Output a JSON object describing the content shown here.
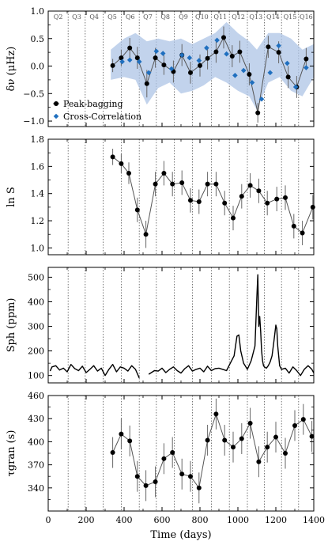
{
  "chart_data": [
    {
      "type": "scatter",
      "ylabel": "δν (μHz)",
      "xlim": [
        0,
        1400
      ],
      "ylim": [
        -1.1,
        1.0
      ],
      "yticks": [
        -1.0,
        -0.5,
        0.0,
        0.5,
        1.0
      ],
      "ytick_labels": [
        "−1.0",
        "−0.5",
        "0.0",
        "0.5",
        "1.0"
      ],
      "quarters": {
        "labels": [
          "Q2",
          "Q3",
          "Q4",
          "Q5",
          "Q6",
          "Q7",
          "Q8",
          "Q9",
          "Q10",
          "Q11",
          "Q12",
          "Q13",
          "Q14",
          "Q15",
          "Q16"
        ],
        "boundaries": [
          0,
          105,
          195,
          290,
          385,
          480,
          570,
          665,
          760,
          860,
          955,
          1050,
          1140,
          1230,
          1320,
          1400
        ]
      },
      "band": {
        "x": [
          330,
          400,
          460,
          520,
          580,
          640,
          700,
          760,
          820,
          880,
          940,
          1000,
          1060,
          1100,
          1160,
          1220,
          1280,
          1340,
          1400
        ],
        "upper": [
          0.3,
          0.5,
          0.6,
          0.45,
          0.5,
          0.45,
          0.5,
          0.4,
          0.5,
          0.6,
          0.8,
          0.6,
          0.45,
          0.3,
          0.6,
          0.6,
          0.5,
          0.3,
          0.4
        ],
        "lower": [
          -0.25,
          -0.2,
          -0.25,
          -0.7,
          -0.4,
          -0.3,
          -0.5,
          -0.45,
          -0.35,
          -0.2,
          -0.3,
          -0.45,
          -0.55,
          -0.8,
          -0.3,
          -0.2,
          -0.45,
          -0.55,
          -0.2
        ]
      },
      "series": [
        {
          "name": "Peak-bagging",
          "marker": "circle",
          "color": "#000000",
          "x": [
            340,
            385,
            430,
            470,
            520,
            565,
            610,
            660,
            705,
            750,
            800,
            840,
            885,
            925,
            970,
            1010,
            1060,
            1105,
            1160,
            1215,
            1265,
            1310,
            1360
          ],
          "y": [
            0.01,
            0.15,
            0.33,
            0.15,
            -0.32,
            0.15,
            0.02,
            -0.1,
            0.2,
            -0.12,
            0.01,
            0.14,
            0.26,
            0.52,
            0.18,
            0.26,
            -0.15,
            -0.85,
            0.35,
            0.25,
            -0.2,
            -0.38,
            0.13
          ],
          "err": [
            0.12,
            0.15,
            0.18,
            0.2,
            0.25,
            0.18,
            0.18,
            0.2,
            0.2,
            0.2,
            0.2,
            0.2,
            0.2,
            0.2,
            0.2,
            0.2,
            0.2,
            0.18,
            0.2,
            0.2,
            0.2,
            0.2,
            0.2
          ]
        },
        {
          "name": "Cross-Correlation",
          "marker": "diamond",
          "color": "#1f6fbf",
          "x": [
            390,
            430,
            480,
            530,
            570,
            605,
            650,
            705,
            745,
            795,
            835,
            890,
            940,
            985,
            1030,
            1075,
            1125,
            1170,
            1215,
            1260,
            1305,
            1360
          ],
          "y": [
            0.08,
            0.11,
            0.08,
            -0.12,
            0.27,
            0.23,
            -0.05,
            0.2,
            0.15,
            0.1,
            0.33,
            0.47,
            0.22,
            -0.17,
            -0.08,
            -0.3,
            -0.6,
            -0.12,
            0.37,
            0.05,
            -0.38,
            -0.03
          ]
        }
      ],
      "legend": {
        "position": "bottom-left",
        "entries": [
          "Peak-bagging",
          "Cross-Correlation"
        ]
      }
    },
    {
      "type": "scatter",
      "ylabel": "ln S",
      "xlim": [
        0,
        1400
      ],
      "ylim": [
        0.95,
        1.8
      ],
      "yticks": [
        1.0,
        1.2,
        1.4,
        1.6,
        1.8
      ],
      "ytick_labels": [
        "1.0",
        "1.2",
        "1.4",
        "1.6",
        "1.8"
      ],
      "series": [
        {
          "name": "",
          "marker": "circle",
          "color": "#000000",
          "x": [
            340,
            385,
            425,
            470,
            515,
            565,
            610,
            655,
            705,
            750,
            795,
            840,
            885,
            930,
            975,
            1020,
            1065,
            1110,
            1155,
            1205,
            1250,
            1295,
            1340,
            1395
          ],
          "y": [
            1.67,
            1.62,
            1.55,
            1.28,
            1.1,
            1.47,
            1.55,
            1.47,
            1.48,
            1.35,
            1.34,
            1.47,
            1.47,
            1.33,
            1.22,
            1.38,
            1.46,
            1.42,
            1.33,
            1.36,
            1.37,
            1.16,
            1.11,
            1.3
          ],
          "err": [
            0.06,
            0.07,
            0.08,
            0.09,
            0.1,
            0.09,
            0.09,
            0.09,
            0.09,
            0.09,
            0.09,
            0.09,
            0.09,
            0.09,
            0.09,
            0.09,
            0.09,
            0.09,
            0.09,
            0.09,
            0.09,
            0.09,
            0.09,
            0.09
          ]
        }
      ]
    },
    {
      "type": "line",
      "ylabel": "Sph (ppm)",
      "xlim": [
        0,
        1400
      ],
      "ylim": [
        70,
        540
      ],
      "yticks": [
        100,
        200,
        300,
        400,
        500
      ],
      "ytick_labels": [
        "100",
        "200",
        "300",
        "400",
        "500"
      ],
      "series": [
        {
          "name": "",
          "color": "#000000",
          "x": [
            10,
            20,
            40,
            60,
            80,
            100,
            120,
            140,
            160,
            180,
            200,
            220,
            240,
            260,
            280,
            300,
            320,
            340,
            360,
            380,
            400,
            420,
            440,
            460,
            480,
            500,
            530,
            560,
            580,
            600,
            620,
            640,
            660,
            680,
            700,
            720,
            740,
            760,
            780,
            800,
            820,
            840,
            860,
            880,
            900,
            920,
            940,
            960,
            980,
            995,
            1005,
            1015,
            1030,
            1050,
            1070,
            1090,
            1100,
            1105,
            1110,
            1115,
            1120,
            1125,
            1130,
            1135,
            1140,
            1150,
            1160,
            1170,
            1180,
            1190,
            1200,
            1205,
            1210,
            1215,
            1220,
            1230,
            1250,
            1270,
            1290,
            1310,
            1330,
            1350,
            1370,
            1390,
            1400
          ],
          "y": [
            118,
            135,
            140,
            122,
            130,
            115,
            145,
            128,
            120,
            138,
            112,
            125,
            140,
            118,
            130,
            100,
            125,
            145,
            115,
            135,
            130,
            118,
            140,
            125,
            90,
            null,
            105,
            120,
            118,
            130,
            112,
            125,
            135,
            120,
            110,
            128,
            140,
            118,
            125,
            130,
            115,
            138,
            120,
            128,
            130,
            125,
            120,
            150,
            180,
            260,
            265,
            200,
            150,
            125,
            160,
            220,
            420,
            510,
            300,
            340,
            280,
            200,
            160,
            140,
            135,
            130,
            140,
            155,
            180,
            240,
            305,
            290,
            220,
            180,
            140,
            125,
            130,
            110,
            135,
            120,
            100,
            125,
            140,
            125,
            110
          ]
        }
      ]
    },
    {
      "type": "scatter",
      "ylabel": "τgran (s)",
      "xlabel": "Time (days)",
      "xlim": [
        0,
        1400
      ],
      "xticks": [
        0,
        200,
        400,
        600,
        800,
        1000,
        1200,
        1400
      ],
      "xtick_labels": [
        "0",
        "200",
        "400",
        "600",
        "800",
        "1000",
        "1200",
        "1400"
      ],
      "ylim": [
        310,
        460
      ],
      "yticks": [
        340,
        370,
        400,
        430,
        460
      ],
      "ytick_labels": [
        "340",
        "370",
        "400",
        "430",
        "460"
      ],
      "series": [
        {
          "name": "",
          "marker": "circle",
          "color": "#000000",
          "x": [
            340,
            385,
            430,
            470,
            515,
            565,
            610,
            655,
            705,
            750,
            795,
            840,
            885,
            930,
            975,
            1020,
            1065,
            1110,
            1155,
            1200,
            1250,
            1300,
            1345,
            1390
          ],
          "y": [
            386,
            410,
            401,
            355,
            343,
            348,
            378,
            386,
            358,
            355,
            340,
            402,
            436,
            402,
            393,
            404,
            424,
            374,
            393,
            406,
            385,
            421,
            429,
            407
          ],
          "err": [
            20,
            20,
            20,
            20,
            20,
            20,
            20,
            20,
            20,
            20,
            20,
            20,
            20,
            20,
            20,
            20,
            20,
            20,
            20,
            20,
            20,
            20,
            20,
            20
          ]
        }
      ]
    }
  ]
}
